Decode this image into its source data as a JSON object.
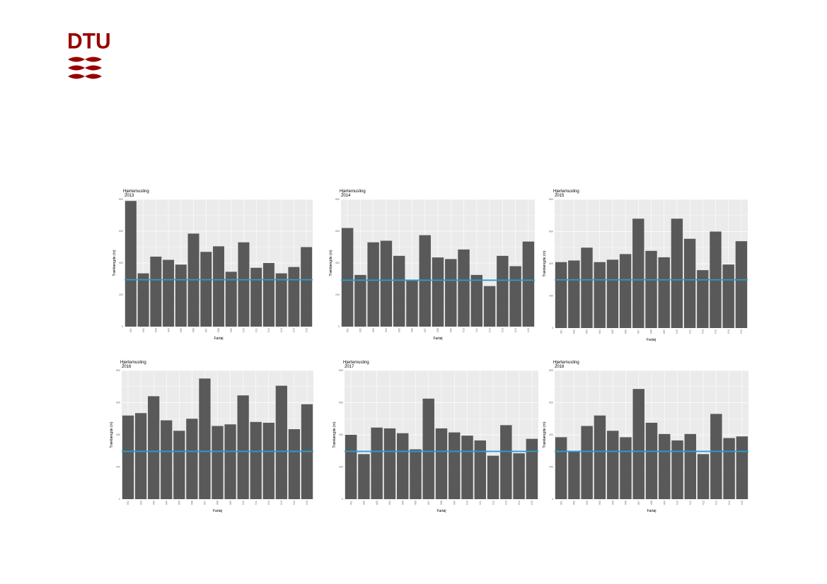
{
  "logo": {
    "text": "DTU",
    "color": "#990000"
  },
  "colors": {
    "panel_bg": "#ebebeb",
    "bar": "#595959",
    "hline": "#3399cc",
    "grid": "#ffffff"
  },
  "chart_data": [
    {
      "type": "bar",
      "title": "Hjertemusling",
      "subtitle": "2013",
      "xlabel": "Fartøj",
      "ylabel": "Træklængde (m)",
      "ylim": [
        0,
        800
      ],
      "yticks": [
        "0",
        "200",
        "400",
        "600",
        "800"
      ],
      "categories": [
        "V01",
        "V02",
        "V03",
        "V04",
        "V05",
        "V06",
        "V07",
        "V08",
        "V09",
        "V10",
        "V11",
        "V12",
        "V13",
        "V14",
        "V15"
      ],
      "values": [
        790,
        335,
        440,
        420,
        390,
        585,
        470,
        505,
        345,
        530,
        370,
        400,
        335,
        375,
        500
      ],
      "hline": 295
    },
    {
      "type": "bar",
      "title": "Hjertemusling",
      "subtitle": "2014",
      "xlabel": "Fartøj",
      "ylabel": "Træklængde (m)",
      "ylim": [
        0,
        800
      ],
      "yticks": [
        "0",
        "200",
        "400",
        "600",
        "800"
      ],
      "categories": [
        "V01",
        "V02",
        "V03",
        "V04",
        "V05",
        "V06",
        "V07",
        "V08",
        "V09",
        "V10",
        "V11",
        "V12",
        "V13",
        "V14",
        "V15"
      ],
      "values": [
        620,
        325,
        530,
        540,
        445,
        290,
        575,
        435,
        425,
        485,
        325,
        255,
        445,
        380,
        535
      ],
      "hline": 292
    },
    {
      "type": "bar",
      "title": "Hjertemusling",
      "subtitle": "2015",
      "xlabel": "Fartøj",
      "ylabel": "Træklængde (m)",
      "ylim": [
        0,
        800
      ],
      "yticks": [
        "0",
        "200",
        "400",
        "600",
        "800"
      ],
      "categories": [
        "V01",
        "V02",
        "V03",
        "V04",
        "V05",
        "V06",
        "V07",
        "V08",
        "V09",
        "V10",
        "V11",
        "V12",
        "V13",
        "V14",
        "V15"
      ],
      "values": [
        410,
        420,
        500,
        410,
        425,
        460,
        680,
        480,
        440,
        680,
        555,
        360,
        600,
        395,
        540
      ],
      "hline": 300
    },
    {
      "type": "bar",
      "title": "Hjertemusling",
      "subtitle": "2016",
      "xlabel": "Fartøj",
      "ylabel": "Træklængde (m)",
      "ylim": [
        0,
        800
      ],
      "yticks": [
        "0",
        "200",
        "400",
        "600",
        "800"
      ],
      "categories": [
        "V01",
        "V02",
        "V03",
        "V04",
        "V05",
        "V06",
        "V07",
        "V08",
        "V09",
        "V10",
        "V11",
        "V12",
        "V13",
        "V14",
        "V15"
      ],
      "values": [
        520,
        535,
        640,
        490,
        425,
        500,
        750,
        455,
        465,
        645,
        480,
        475,
        705,
        435,
        590
      ],
      "hline": 297
    },
    {
      "type": "bar",
      "title": "Hjertemusling",
      "subtitle": "2017",
      "xlabel": "Fartøj",
      "ylabel": "Træklængde (m)",
      "ylim": [
        0,
        800
      ],
      "yticks": [
        "0",
        "200",
        "400",
        "600",
        "800"
      ],
      "categories": [
        "V01",
        "V02",
        "V03",
        "V04",
        "V05",
        "V06",
        "V07",
        "V08",
        "V09",
        "V10",
        "V11",
        "V12",
        "V13",
        "V14",
        "V15"
      ],
      "values": [
        400,
        280,
        445,
        440,
        410,
        310,
        625,
        440,
        415,
        395,
        365,
        270,
        460,
        285,
        375
      ],
      "hline": 297
    },
    {
      "type": "bar",
      "title": "Hjertemusling",
      "subtitle": "2018",
      "xlabel": "Fartøj",
      "ylabel": "Træklængde (m)",
      "ylim": [
        0,
        800
      ],
      "yticks": [
        "0",
        "200",
        "400",
        "600",
        "800"
      ],
      "categories": [
        "V01",
        "V02",
        "V03",
        "V04",
        "V05",
        "V06",
        "V07",
        "V08",
        "V09",
        "V10",
        "V11",
        "V12",
        "V13",
        "V14",
        "V15"
      ],
      "values": [
        385,
        300,
        455,
        520,
        425,
        385,
        685,
        475,
        405,
        365,
        405,
        280,
        530,
        380,
        390
      ],
      "hline": 297
    }
  ]
}
